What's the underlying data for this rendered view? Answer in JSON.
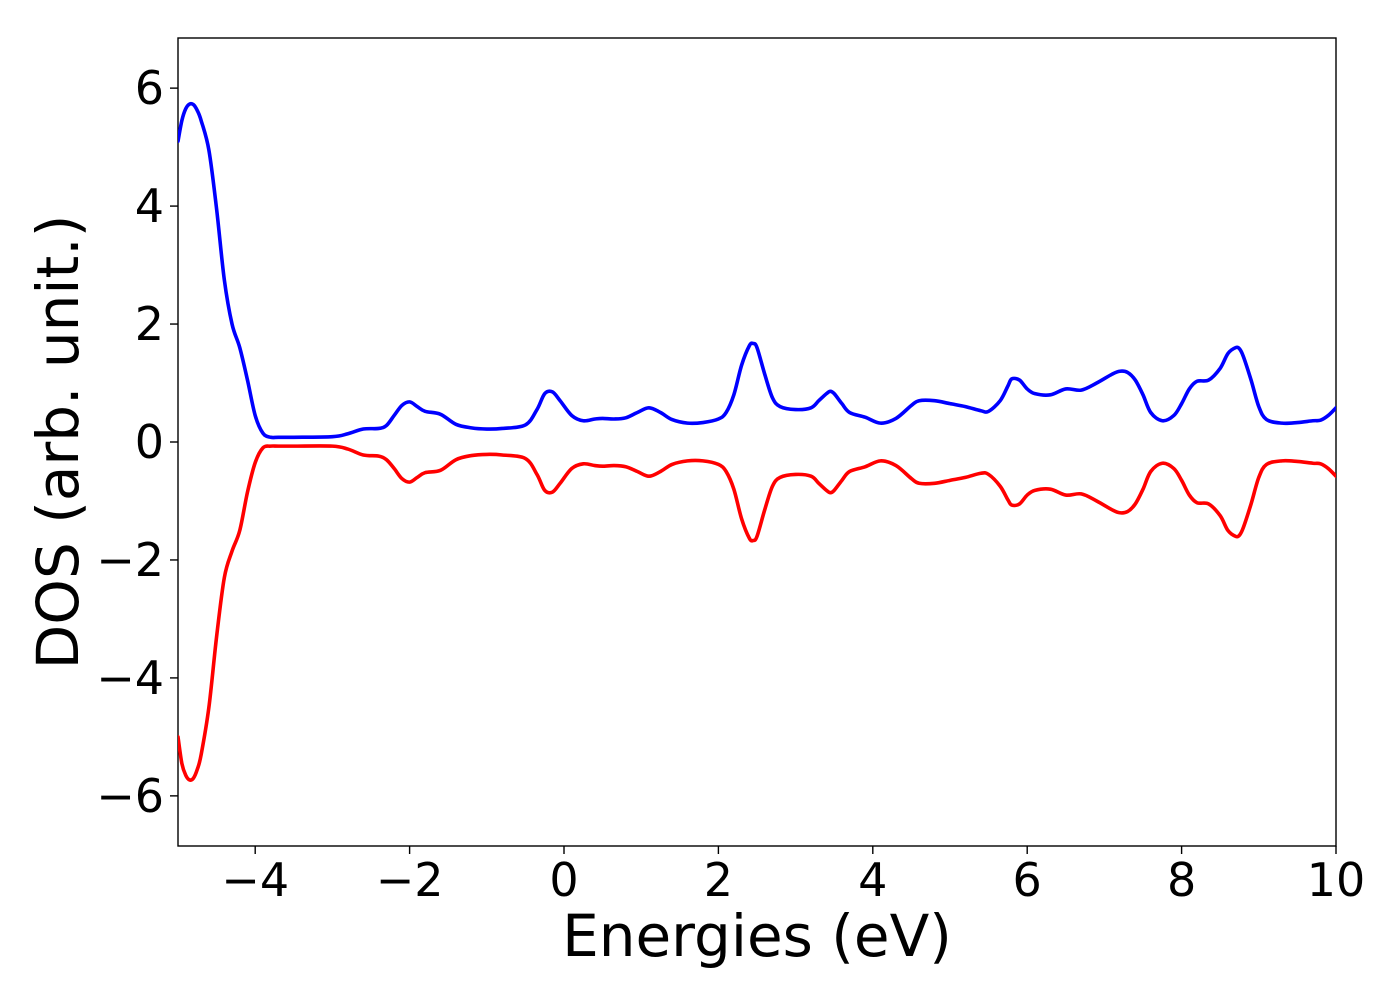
{
  "chart_data": {
    "type": "line",
    "xlabel": "Energies (eV)",
    "ylabel": "DOS (arb. unit.)",
    "xlim": [
      -5,
      10
    ],
    "ylim": [
      -6.85,
      6.85
    ],
    "xticks": [
      -4,
      -2,
      0,
      2,
      4,
      6,
      8,
      10
    ],
    "xtick_labels": [
      "−4",
      "−2",
      "0",
      "2",
      "4",
      "6",
      "8",
      "10"
    ],
    "yticks": [
      -6,
      -4,
      -2,
      0,
      2,
      4,
      6
    ],
    "ytick_labels": [
      "−6",
      "−4",
      "−2",
      "0",
      "2",
      "4",
      "6"
    ],
    "grid": false,
    "legend": "none",
    "series": [
      {
        "color": "#0000ff",
        "x": [
          -5.0,
          -4.95,
          -4.9,
          -4.85,
          -4.8,
          -4.75,
          -4.7,
          -4.6,
          -4.5,
          -4.4,
          -4.3,
          -4.2,
          -4.1,
          -4.0,
          -3.9,
          -3.8,
          -3.7,
          -3.5,
          -3.0,
          -2.8,
          -2.6,
          -2.4,
          -2.3,
          -2.2,
          -2.1,
          -2.0,
          -1.9,
          -1.8,
          -1.6,
          -1.4,
          -1.2,
          -1.0,
          -0.8,
          -0.5,
          -0.35,
          -0.25,
          -0.15,
          -0.05,
          0.1,
          0.25,
          0.4,
          0.5,
          0.65,
          0.8,
          0.95,
          1.1,
          1.25,
          1.4,
          1.6,
          1.8,
          2.0,
          2.1,
          2.2,
          2.3,
          2.4,
          2.45,
          2.5,
          2.6,
          2.7,
          2.8,
          3.0,
          3.2,
          3.3,
          3.4,
          3.45,
          3.5,
          3.6,
          3.7,
          3.9,
          4.1,
          4.3,
          4.5,
          4.6,
          4.8,
          5.0,
          5.2,
          5.4,
          5.5,
          5.65,
          5.75,
          5.8,
          5.9,
          6.0,
          6.1,
          6.3,
          6.5,
          6.7,
          6.9,
          7.1,
          7.2,
          7.3,
          7.4,
          7.5,
          7.6,
          7.75,
          7.9,
          8.0,
          8.1,
          8.2,
          8.35,
          8.5,
          8.6,
          8.7,
          8.75,
          8.8,
          8.9,
          9.0,
          9.1,
          9.3,
          9.5,
          9.7,
          9.8,
          9.9,
          10.0
        ],
        "y": [
          5.1,
          5.45,
          5.65,
          5.73,
          5.72,
          5.62,
          5.45,
          4.95,
          3.95,
          2.75,
          2.0,
          1.6,
          1.05,
          0.45,
          0.15,
          0.08,
          0.08,
          0.08,
          0.09,
          0.14,
          0.22,
          0.23,
          0.28,
          0.45,
          0.62,
          0.68,
          0.6,
          0.52,
          0.47,
          0.3,
          0.24,
          0.22,
          0.23,
          0.29,
          0.55,
          0.82,
          0.85,
          0.7,
          0.45,
          0.36,
          0.39,
          0.4,
          0.39,
          0.41,
          0.5,
          0.58,
          0.5,
          0.38,
          0.32,
          0.33,
          0.39,
          0.5,
          0.8,
          1.3,
          1.63,
          1.67,
          1.6,
          1.15,
          0.75,
          0.6,
          0.55,
          0.58,
          0.7,
          0.82,
          0.86,
          0.82,
          0.65,
          0.5,
          0.42,
          0.32,
          0.4,
          0.62,
          0.7,
          0.7,
          0.65,
          0.6,
          0.53,
          0.52,
          0.7,
          0.95,
          1.07,
          1.05,
          0.9,
          0.82,
          0.8,
          0.9,
          0.88,
          1.0,
          1.15,
          1.2,
          1.18,
          1.05,
          0.8,
          0.5,
          0.36,
          0.45,
          0.65,
          0.9,
          1.03,
          1.05,
          1.25,
          1.5,
          1.6,
          1.58,
          1.45,
          1.05,
          0.6,
          0.38,
          0.32,
          0.33,
          0.36,
          0.37,
          0.45,
          0.58
        ]
      },
      {
        "color": "#ff0000",
        "x": [
          -5.0,
          -4.95,
          -4.9,
          -4.85,
          -4.8,
          -4.75,
          -4.7,
          -4.6,
          -4.5,
          -4.4,
          -4.3,
          -4.2,
          -4.1,
          -4.0,
          -3.9,
          -3.8,
          -3.7,
          -3.5,
          -3.0,
          -2.8,
          -2.6,
          -2.4,
          -2.3,
          -2.2,
          -2.1,
          -2.0,
          -1.9,
          -1.8,
          -1.6,
          -1.4,
          -1.2,
          -1.0,
          -0.8,
          -0.5,
          -0.35,
          -0.25,
          -0.15,
          -0.05,
          0.1,
          0.25,
          0.4,
          0.5,
          0.65,
          0.8,
          0.95,
          1.1,
          1.25,
          1.4,
          1.6,
          1.8,
          2.0,
          2.1,
          2.2,
          2.3,
          2.4,
          2.45,
          2.5,
          2.6,
          2.7,
          2.8,
          3.0,
          3.2,
          3.3,
          3.4,
          3.45,
          3.5,
          3.6,
          3.7,
          3.9,
          4.1,
          4.3,
          4.5,
          4.6,
          4.8,
          5.0,
          5.2,
          5.4,
          5.5,
          5.65,
          5.75,
          5.8,
          5.9,
          6.0,
          6.1,
          6.3,
          6.5,
          6.7,
          6.9,
          7.1,
          7.2,
          7.3,
          7.4,
          7.5,
          7.6,
          7.75,
          7.9,
          8.0,
          8.1,
          8.2,
          8.35,
          8.5,
          8.6,
          8.7,
          8.75,
          8.8,
          8.9,
          9.0,
          9.1,
          9.3,
          9.5,
          9.7,
          9.8,
          9.9,
          10.0
        ],
        "y": [
          -5.0,
          -5.45,
          -5.65,
          -5.73,
          -5.7,
          -5.55,
          -5.3,
          -4.5,
          -3.3,
          -2.3,
          -1.85,
          -1.5,
          -0.85,
          -0.35,
          -0.1,
          -0.07,
          -0.07,
          -0.07,
          -0.07,
          -0.12,
          -0.22,
          -0.24,
          -0.3,
          -0.45,
          -0.62,
          -0.68,
          -0.6,
          -0.52,
          -0.48,
          -0.3,
          -0.23,
          -0.21,
          -0.22,
          -0.28,
          -0.55,
          -0.82,
          -0.85,
          -0.7,
          -0.45,
          -0.37,
          -0.4,
          -0.41,
          -0.4,
          -0.42,
          -0.5,
          -0.58,
          -0.5,
          -0.38,
          -0.32,
          -0.32,
          -0.38,
          -0.5,
          -0.8,
          -1.3,
          -1.63,
          -1.67,
          -1.6,
          -1.15,
          -0.75,
          -0.6,
          -0.55,
          -0.58,
          -0.7,
          -0.82,
          -0.86,
          -0.82,
          -0.65,
          -0.5,
          -0.42,
          -0.32,
          -0.4,
          -0.62,
          -0.7,
          -0.7,
          -0.65,
          -0.6,
          -0.53,
          -0.55,
          -0.75,
          -0.98,
          -1.07,
          -1.05,
          -0.9,
          -0.82,
          -0.8,
          -0.9,
          -0.88,
          -1.0,
          -1.15,
          -1.2,
          -1.18,
          -1.05,
          -0.8,
          -0.5,
          -0.36,
          -0.45,
          -0.65,
          -0.9,
          -1.03,
          -1.05,
          -1.25,
          -1.5,
          -1.6,
          -1.58,
          -1.45,
          -1.05,
          -0.6,
          -0.38,
          -0.32,
          -0.33,
          -0.36,
          -0.37,
          -0.45,
          -0.58
        ]
      }
    ]
  }
}
